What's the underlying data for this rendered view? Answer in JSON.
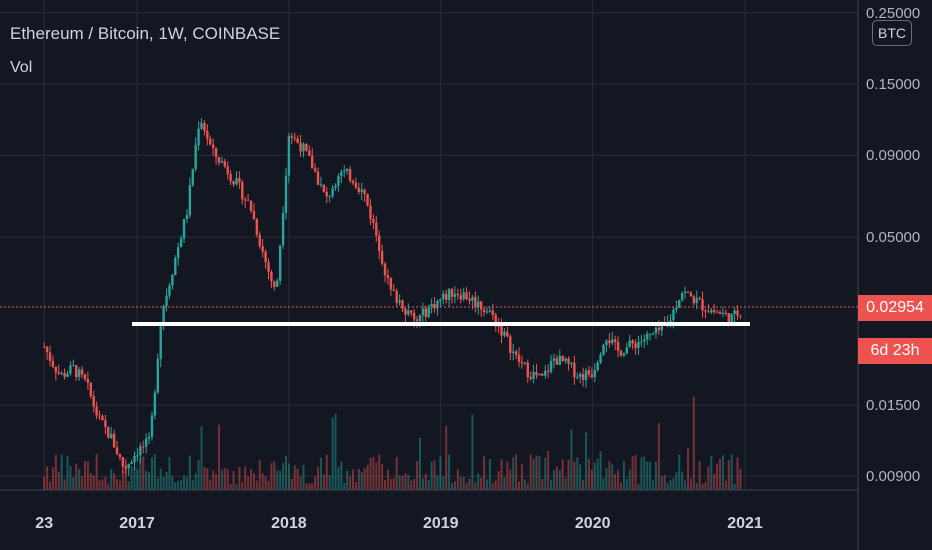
{
  "header": {
    "title": "Ethereum / Bitcoin, 1W, COINBASE",
    "volume_label": "Vol"
  },
  "currency_button": "BTC",
  "price_tag": {
    "value": "0.02954",
    "countdown": "6d 23h",
    "color": "#ef5350"
  },
  "colors": {
    "up": "#26a69a",
    "down": "#ef5350",
    "support_line": "#ffffff",
    "background": "#131722"
  },
  "chart_data": {
    "type": "candlestick",
    "title": "Ethereum / Bitcoin, 1W, COINBASE",
    "y_scale": "log",
    "y_ticks": [
      "0.25000",
      "0.15000",
      "0.09000",
      "0.05000",
      "0.01500",
      "0.00900"
    ],
    "x_ticks": [
      "23",
      "2017",
      "2018",
      "2019",
      "2020",
      "2021"
    ],
    "last_price": 0.02954,
    "support_level": 0.025,
    "grid": true,
    "weekly_close_path": [
      [
        "2016-05-23",
        0.0228
      ],
      [
        "2016-06-10",
        0.0205
      ],
      [
        "2016-07-01",
        0.0185
      ],
      [
        "2016-08-01",
        0.0195
      ],
      [
        "2016-09-01",
        0.0175
      ],
      [
        "2016-10-01",
        0.0135
      ],
      [
        "2016-11-01",
        0.0118
      ],
      [
        "2016-12-01",
        0.0095
      ],
      [
        "2017-01-01",
        0.0108
      ],
      [
        "2017-02-01",
        0.0115
      ],
      [
        "2017-03-01",
        0.029
      ],
      [
        "2017-04-01",
        0.042
      ],
      [
        "2017-05-01",
        0.06
      ],
      [
        "2017-06-01",
        0.12
      ],
      [
        "2017-07-01",
        0.092
      ],
      [
        "2017-08-01",
        0.083
      ],
      [
        "2017-09-01",
        0.072
      ],
      [
        "2017-10-01",
        0.062
      ],
      [
        "2017-11-01",
        0.044
      ],
      [
        "2017-12-01",
        0.033
      ],
      [
        "2018-01-01",
        0.105
      ],
      [
        "2018-02-01",
        0.096
      ],
      [
        "2018-03-01",
        0.082
      ],
      [
        "2018-04-01",
        0.065
      ],
      [
        "2018-05-01",
        0.08
      ],
      [
        "2018-06-01",
        0.077
      ],
      [
        "2018-07-01",
        0.068
      ],
      [
        "2018-08-01",
        0.05
      ],
      [
        "2018-09-01",
        0.034
      ],
      [
        "2018-10-01",
        0.031
      ],
      [
        "2018-11-01",
        0.027
      ],
      [
        "2018-12-01",
        0.03
      ],
      [
        "2019-01-01",
        0.032
      ],
      [
        "2019-02-01",
        0.034
      ],
      [
        "2019-03-01",
        0.033
      ],
      [
        "2019-04-01",
        0.031
      ],
      [
        "2019-05-01",
        0.029
      ],
      [
        "2019-06-01",
        0.025
      ],
      [
        "2019-07-01",
        0.021
      ],
      [
        "2019-08-01",
        0.019
      ],
      [
        "2019-09-01",
        0.018
      ],
      [
        "2019-10-01",
        0.021
      ],
      [
        "2019-11-01",
        0.02
      ],
      [
        "2019-12-01",
        0.0185
      ],
      [
        "2020-01-01",
        0.019
      ],
      [
        "2020-02-01",
        0.025
      ],
      [
        "2020-03-01",
        0.022
      ],
      [
        "2020-04-01",
        0.023
      ],
      [
        "2020-05-01",
        0.024
      ],
      [
        "2020-06-01",
        0.025
      ],
      [
        "2020-07-01",
        0.027
      ],
      [
        "2020-08-01",
        0.034
      ],
      [
        "2020-09-01",
        0.032
      ],
      [
        "2020-10-01",
        0.03
      ],
      [
        "2020-11-01",
        0.029
      ],
      [
        "2020-12-01",
        0.028
      ],
      [
        "2020-12-21",
        0.02954
      ]
    ]
  }
}
